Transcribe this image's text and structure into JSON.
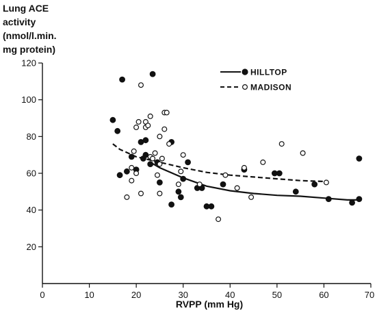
{
  "chart_data": {
    "type": "scatter",
    "ylabel_lines": [
      "Lung ACE",
      "activity",
      "(nmol/l.min.",
      "mg protein)"
    ],
    "xlabel": "RVPP (mm Hg)",
    "xlim": [
      0,
      70
    ],
    "ylim": [
      0,
      120
    ],
    "x_ticks": [
      0,
      10,
      20,
      30,
      40,
      50,
      60,
      70
    ],
    "y_ticks": [
      20,
      40,
      60,
      80,
      100,
      120
    ],
    "grid": false,
    "legend_position": "top-right",
    "series": [
      {
        "name": "HILLTOP",
        "marker": "filled-circle",
        "line_style": "solid",
        "points": [
          [
            15,
            89
          ],
          [
            16,
            83
          ],
          [
            16.5,
            59
          ],
          [
            17,
            111
          ],
          [
            18,
            61
          ],
          [
            19,
            69
          ],
          [
            20,
            62
          ],
          [
            21,
            77
          ],
          [
            21.5,
            68
          ],
          [
            22,
            78
          ],
          [
            22,
            70
          ],
          [
            23,
            65
          ],
          [
            23.5,
            114
          ],
          [
            24.5,
            66
          ],
          [
            25,
            55
          ],
          [
            27.5,
            77
          ],
          [
            27.5,
            43
          ],
          [
            29,
            50
          ],
          [
            29.5,
            47
          ],
          [
            30,
            57
          ],
          [
            31,
            66
          ],
          [
            33,
            52
          ],
          [
            34,
            52
          ],
          [
            35,
            42
          ],
          [
            36,
            42
          ],
          [
            38.5,
            54
          ],
          [
            43,
            62
          ],
          [
            49.5,
            60
          ],
          [
            50.5,
            60
          ],
          [
            54,
            50
          ],
          [
            58,
            54
          ],
          [
            61,
            46
          ],
          [
            66,
            44
          ],
          [
            67.5,
            46
          ],
          [
            67.5,
            68
          ]
        ],
        "fit_curve": [
          [
            23,
            66
          ],
          [
            25,
            63
          ],
          [
            30,
            57.5
          ],
          [
            35,
            53
          ],
          [
            40,
            50.5
          ],
          [
            45,
            49
          ],
          [
            50,
            48
          ],
          [
            55,
            47.5
          ],
          [
            60,
            46.5
          ],
          [
            65,
            45.5
          ],
          [
            67,
            45.5
          ]
        ]
      },
      {
        "name": "MADISON",
        "marker": "open-circle",
        "line_style": "dashed",
        "points": [
          [
            18,
            47
          ],
          [
            19,
            63
          ],
          [
            19,
            56
          ],
          [
            19.5,
            72
          ],
          [
            20,
            85
          ],
          [
            20,
            60
          ],
          [
            20.5,
            88
          ],
          [
            21,
            108
          ],
          [
            21,
            49
          ],
          [
            22,
            88
          ],
          [
            22,
            85
          ],
          [
            22.5,
            86
          ],
          [
            23,
            91
          ],
          [
            23,
            69
          ],
          [
            23.5,
            68
          ],
          [
            24,
            71
          ],
          [
            24.5,
            59
          ],
          [
            25,
            80
          ],
          [
            25,
            65
          ],
          [
            25,
            49
          ],
          [
            25.5,
            68
          ],
          [
            26,
            93
          ],
          [
            26,
            84
          ],
          [
            26.5,
            93
          ],
          [
            27,
            76
          ],
          [
            29,
            54
          ],
          [
            29.5,
            61
          ],
          [
            30,
            70
          ],
          [
            33.5,
            54
          ],
          [
            37.5,
            35
          ],
          [
            39,
            59
          ],
          [
            41.5,
            52
          ],
          [
            43,
            63
          ],
          [
            44.5,
            47
          ],
          [
            47,
            66
          ],
          [
            51,
            76
          ],
          [
            55.5,
            71
          ],
          [
            60.5,
            55
          ]
        ],
        "fit_curve": [
          [
            15,
            76
          ],
          [
            16.5,
            73
          ],
          [
            20,
            69
          ],
          [
            25,
            66
          ],
          [
            30,
            63
          ],
          [
            35,
            60.5
          ],
          [
            40,
            59
          ],
          [
            45,
            58
          ],
          [
            50,
            57
          ],
          [
            55,
            56
          ],
          [
            60.5,
            55.5
          ]
        ]
      }
    ]
  }
}
